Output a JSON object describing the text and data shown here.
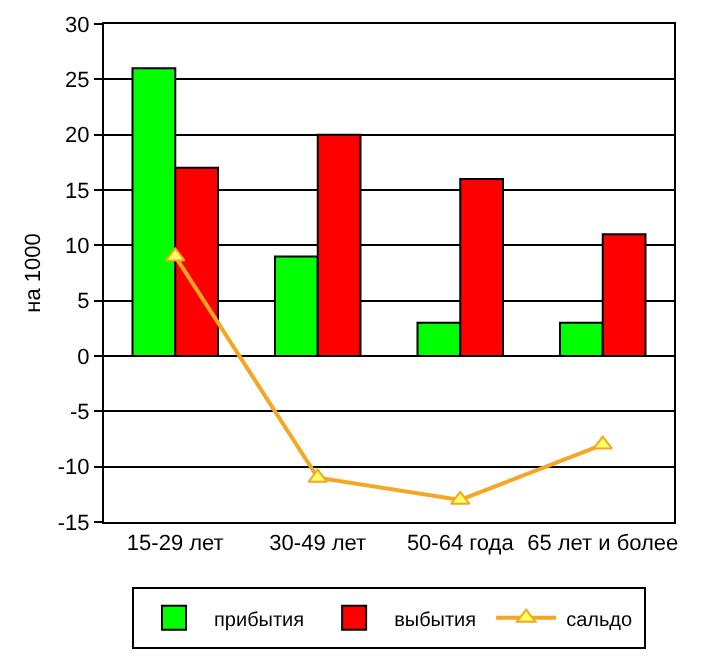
{
  "chart_data": {
    "type": "bar",
    "ylabel": "на 1000",
    "categories": [
      "15-29 лет",
      "30-49 лет",
      "50-64 года",
      "65 лет и более"
    ],
    "series": [
      {
        "name": "прибытия",
        "color": "#00ff00",
        "values": [
          26,
          9,
          3,
          3
        ]
      },
      {
        "name": "выбытия",
        "color": "#ff0000",
        "values": [
          17,
          20,
          16,
          11
        ]
      },
      {
        "name": "сальдо",
        "type": "line",
        "color": "#f5a623",
        "marker": "triangle",
        "values": [
          9,
          -11,
          -13,
          -8
        ]
      }
    ],
    "ylim": [
      -15,
      30
    ],
    "yticks": [
      -15,
      -10,
      -5,
      0,
      5,
      10,
      15,
      20,
      25,
      30
    ],
    "grid": "y",
    "legend": "bottom"
  }
}
